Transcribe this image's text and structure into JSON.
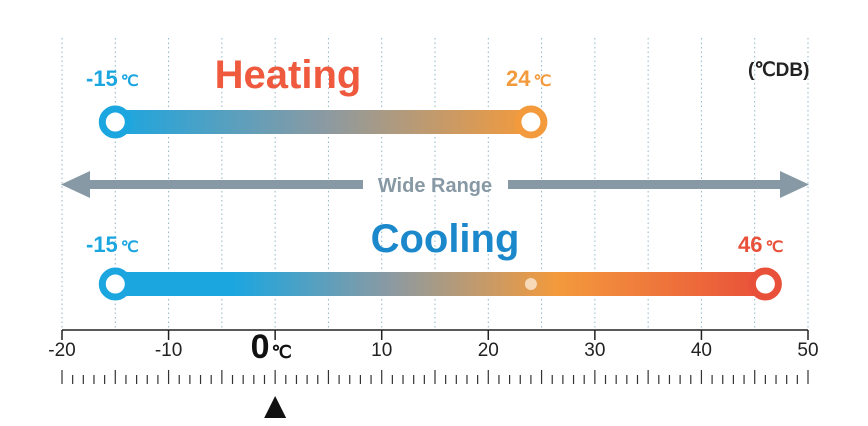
{
  "unit_note": "(℃DB)",
  "heating": {
    "title": "Heating",
    "min_label": "-15",
    "max_label": "24",
    "min_value": -15,
    "max_value": 24,
    "unit": "℃"
  },
  "cooling": {
    "title": "Cooling",
    "min_label": "-15",
    "max_label": "46",
    "min_value": -15,
    "max_value": 46,
    "unit": "℃",
    "marker_value": 24
  },
  "range_label": "Wide Range",
  "scale": {
    "min": -20,
    "max": 50,
    "major_step": 10,
    "minor_step": 1,
    "tick_labels": [
      "-20",
      "-10",
      "0",
      "10",
      "20",
      "30",
      "40",
      "50"
    ],
    "zero_unit": "℃",
    "pointer_value": 0
  },
  "colors": {
    "cool_blue": "#1ba6e0",
    "mid_gray": "#8a9aa3",
    "warm_orange": "#f39a3c",
    "hot_red": "#e9503a",
    "heating_title": "#ef5a3f",
    "cooling_title": "#1c88cc",
    "arrow_gray": "#8799a4"
  }
}
